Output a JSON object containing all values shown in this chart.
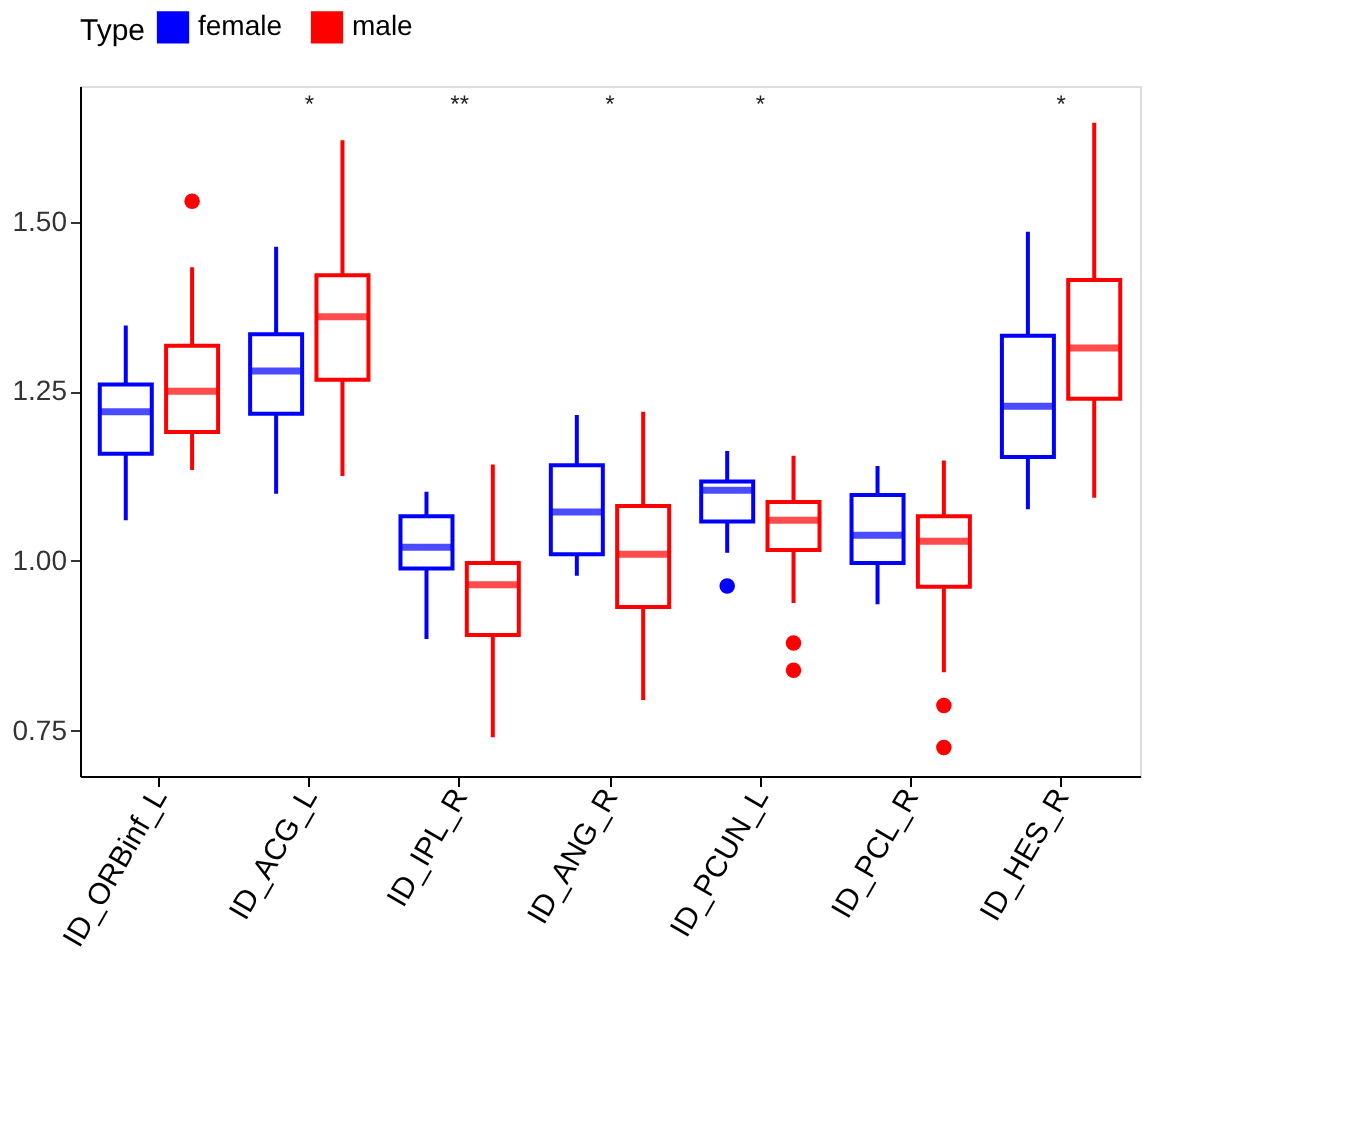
{
  "chart_data": {
    "type": "box",
    "legend_title": "Type",
    "legend": "top",
    "grid": false,
    "categories": [
      "ID_ORBinf_L",
      "ID_ACG_L",
      "ID_IPL_R",
      "ID_ANG_R",
      "ID_PCUN_L",
      "ID_PCL_R",
      "ID_HES_R"
    ],
    "ylim": [
      0.683,
      1.7
    ],
    "yticks": [
      {
        "value": 0.75,
        "label": "0.75"
      },
      {
        "value": 1.0,
        "label": "1.00"
      },
      {
        "value": 1.25,
        "label": "1.25"
      },
      {
        "value": 1.5,
        "label": "1.50"
      }
    ],
    "series": [
      {
        "name": "female",
        "color": "#0000ff",
        "boxes": [
          {
            "low": 1.06,
            "q1": 1.158,
            "median": 1.22,
            "q3": 1.26,
            "high": 1.347
          },
          {
            "low": 1.099,
            "q1": 1.217,
            "median": 1.28,
            "q3": 1.334,
            "high": 1.463
          },
          {
            "low": 0.885,
            "q1": 0.989,
            "median": 1.02,
            "q3": 1.066,
            "high": 1.102
          },
          {
            "low": 0.978,
            "q1": 1.01,
            "median": 1.072,
            "q3": 1.141,
            "high": 1.215
          },
          {
            "low": 1.012,
            "q1": 1.058,
            "median": 1.104,
            "q3": 1.117,
            "high": 1.162,
            "outliers": [
              0.963
            ]
          },
          {
            "low": 0.936,
            "q1": 0.997,
            "median": 1.038,
            "q3": 1.097,
            "high": 1.14
          },
          {
            "low": 1.076,
            "q1": 1.153,
            "median": 1.228,
            "q3": 1.332,
            "high": 1.485
          }
        ]
      },
      {
        "name": "male",
        "color": "#ff0000",
        "boxes": [
          {
            "low": 1.134,
            "q1": 1.19,
            "median": 1.25,
            "q3": 1.317,
            "high": 1.433,
            "outliers": [
              1.53
            ]
          },
          {
            "low": 1.125,
            "q1": 1.267,
            "median": 1.36,
            "q3": 1.421,
            "high": 1.62
          },
          {
            "low": 0.74,
            "q1": 0.891,
            "median": 0.965,
            "q3": 0.997,
            "high": 1.142
          },
          {
            "low": 0.795,
            "q1": 0.932,
            "median": 1.01,
            "q3": 1.081,
            "high": 1.22
          },
          {
            "low": 0.938,
            "q1": 1.016,
            "median": 1.06,
            "q3": 1.087,
            "high": 1.155,
            "outliers": [
              0.879,
              0.839
            ]
          },
          {
            "low": 0.836,
            "q1": 0.962,
            "median": 1.029,
            "q3": 1.066,
            "high": 1.148,
            "outliers": [
              0.787,
              0.725
            ]
          },
          {
            "low": 1.093,
            "q1": 1.239,
            "median": 1.314,
            "q3": 1.414,
            "high": 1.646
          }
        ]
      }
    ],
    "annotations": [
      "*",
      "**",
      "*",
      "*",
      "*"
    ]
  }
}
